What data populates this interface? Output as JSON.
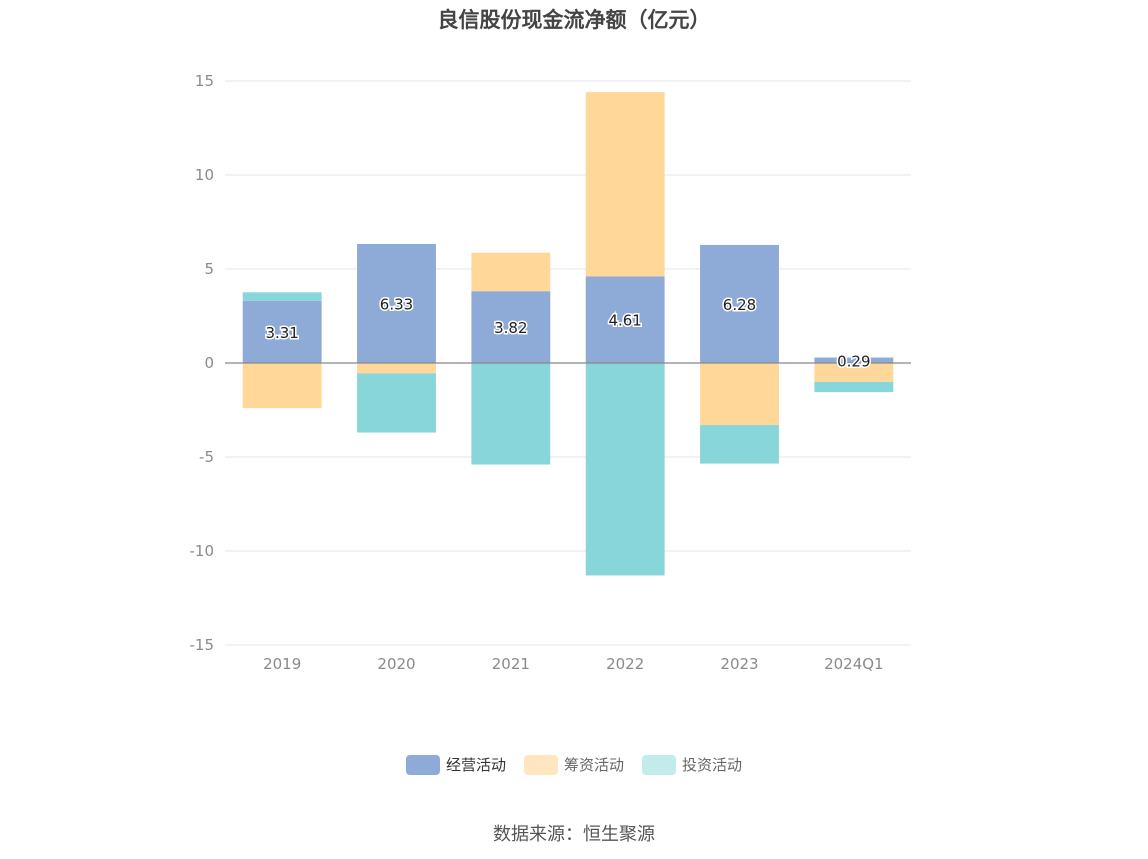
{
  "chart_data": {
    "type": "bar",
    "stacked": true,
    "title": "良信股份现金流净额（亿元）",
    "categories": [
      "2019",
      "2020",
      "2021",
      "2022",
      "2023",
      "2024Q1"
    ],
    "series": [
      {
        "name": "经营活动",
        "color": "#8eabd8",
        "values": [
          3.31,
          6.33,
          3.82,
          4.61,
          6.28,
          0.29
        ],
        "labels": [
          "3.31",
          "6.33",
          "3.82",
          "4.61",
          "6.28",
          "0.29"
        ]
      },
      {
        "name": "筹资活动",
        "color": "#ffd899",
        "values": [
          -2.4,
          -0.55,
          2.05,
          9.8,
          -3.3,
          -1.0
        ]
      },
      {
        "name": "投资活动",
        "color": "#88d6d9",
        "values": [
          0.45,
          -3.15,
          -5.4,
          -11.3,
          -2.05,
          -0.55
        ]
      }
    ],
    "yticks": [
      "15",
      "10",
      "5",
      "0",
      "-5",
      "-10",
      "-15"
    ],
    "ylim": [
      -15,
      15
    ],
    "grid": true,
    "legend_position": "bottom",
    "source": "数据来源：恒生聚源"
  }
}
